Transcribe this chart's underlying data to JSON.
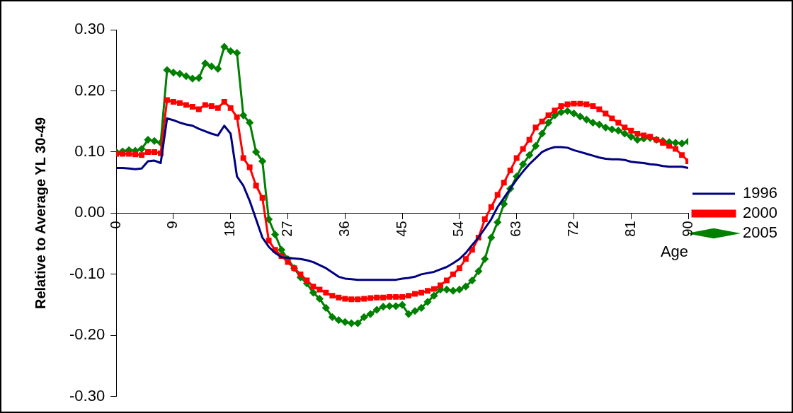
{
  "chart_data": {
    "type": "line",
    "xlabel": "Age",
    "ylabel": "Relative to Average YL 30-49",
    "x": [
      0,
      1,
      2,
      3,
      4,
      5,
      6,
      7,
      8,
      9,
      10,
      11,
      12,
      13,
      14,
      15,
      16,
      17,
      18,
      19,
      20,
      21,
      22,
      23,
      24,
      25,
      26,
      27,
      28,
      29,
      30,
      31,
      32,
      33,
      34,
      35,
      36,
      37,
      38,
      39,
      40,
      41,
      42,
      43,
      44,
      45,
      46,
      47,
      48,
      49,
      50,
      51,
      52,
      53,
      54,
      55,
      56,
      57,
      58,
      59,
      60,
      61,
      62,
      63,
      64,
      65,
      66,
      67,
      68,
      69,
      70,
      71,
      72,
      73,
      74,
      75,
      76,
      77,
      78,
      79,
      80,
      81,
      82,
      83,
      84,
      85,
      86,
      87,
      88,
      89,
      90
    ],
    "series": [
      {
        "name": "1996",
        "color": "#000080",
        "marker": "none",
        "values": [
          0.074,
          0.074,
          0.073,
          0.072,
          0.073,
          0.085,
          0.086,
          0.082,
          0.155,
          0.152,
          0.148,
          0.145,
          0.143,
          0.138,
          0.134,
          0.13,
          0.127,
          0.143,
          0.13,
          0.06,
          0.045,
          0.02,
          -0.01,
          -0.04,
          -0.055,
          -0.065,
          -0.072,
          -0.073,
          -0.074,
          -0.075,
          -0.077,
          -0.08,
          -0.085,
          -0.09,
          -0.097,
          -0.104,
          -0.107,
          -0.108,
          -0.109,
          -0.109,
          -0.109,
          -0.109,
          -0.109,
          -0.109,
          -0.109,
          -0.107,
          -0.106,
          -0.104,
          -0.1,
          -0.098,
          -0.096,
          -0.092,
          -0.088,
          -0.082,
          -0.075,
          -0.065,
          -0.052,
          -0.04,
          -0.025,
          -0.01,
          0.01,
          0.025,
          0.04,
          0.055,
          0.068,
          0.08,
          0.09,
          0.1,
          0.105,
          0.108,
          0.108,
          0.107,
          0.103,
          0.1,
          0.097,
          0.094,
          0.091,
          0.089,
          0.088,
          0.088,
          0.087,
          0.084,
          0.083,
          0.082,
          0.08,
          0.079,
          0.077,
          0.076,
          0.076,
          0.076,
          0.074
        ]
      },
      {
        "name": "2000",
        "color": "#ff0000",
        "marker": "square",
        "values": [
          0.097,
          0.097,
          0.097,
          0.096,
          0.095,
          0.1,
          0.1,
          0.098,
          0.185,
          0.182,
          0.18,
          0.177,
          0.174,
          0.17,
          0.177,
          0.175,
          0.172,
          0.182,
          0.172,
          0.157,
          0.09,
          0.075,
          0.045,
          0.025,
          -0.045,
          -0.06,
          -0.07,
          -0.08,
          -0.09,
          -0.1,
          -0.11,
          -0.12,
          -0.125,
          -0.13,
          -0.135,
          -0.138,
          -0.14,
          -0.141,
          -0.141,
          -0.14,
          -0.139,
          -0.138,
          -0.138,
          -0.137,
          -0.137,
          -0.137,
          -0.135,
          -0.132,
          -0.13,
          -0.127,
          -0.124,
          -0.118,
          -0.11,
          -0.1,
          -0.09,
          -0.075,
          -0.06,
          -0.04,
          -0.01,
          0.01,
          0.03,
          0.05,
          0.07,
          0.09,
          0.105,
          0.12,
          0.14,
          0.15,
          0.16,
          0.168,
          0.175,
          0.178,
          0.179,
          0.179,
          0.178,
          0.175,
          0.17,
          0.163,
          0.155,
          0.148,
          0.14,
          0.135,
          0.13,
          0.127,
          0.125,
          0.12,
          0.115,
          0.11,
          0.105,
          0.095,
          0.085
        ]
      },
      {
        "name": "2005",
        "color": "#008000",
        "marker": "diamond",
        "values": [
          0.1,
          0.101,
          0.103,
          0.102,
          0.105,
          0.12,
          0.118,
          0.115,
          0.234,
          0.23,
          0.228,
          0.224,
          0.22,
          0.221,
          0.245,
          0.24,
          0.236,
          0.272,
          0.265,
          0.262,
          0.16,
          0.148,
          0.1,
          0.085,
          -0.01,
          -0.035,
          -0.06,
          -0.075,
          -0.09,
          -0.105,
          -0.115,
          -0.13,
          -0.14,
          -0.155,
          -0.17,
          -0.175,
          -0.178,
          -0.18,
          -0.18,
          -0.17,
          -0.165,
          -0.158,
          -0.153,
          -0.152,
          -0.152,
          -0.15,
          -0.165,
          -0.16,
          -0.155,
          -0.145,
          -0.135,
          -0.125,
          -0.125,
          -0.127,
          -0.125,
          -0.12,
          -0.11,
          -0.095,
          -0.075,
          -0.04,
          -0.015,
          0.015,
          0.04,
          0.06,
          0.08,
          0.095,
          0.11,
          0.13,
          0.148,
          0.16,
          0.165,
          0.167,
          0.163,
          0.158,
          0.153,
          0.148,
          0.145,
          0.14,
          0.137,
          0.135,
          0.13,
          0.125,
          0.12,
          0.122,
          0.123,
          0.12,
          0.118,
          0.116,
          0.115,
          0.114,
          0.117
        ]
      }
    ],
    "xlim": [
      0,
      90
    ],
    "xticks": [
      0,
      9,
      18,
      27,
      36,
      45,
      54,
      63,
      72,
      81,
      90
    ],
    "ylim": [
      -0.3,
      0.3
    ],
    "yticks": [
      {
        "value": -0.3,
        "label": "-0.30"
      },
      {
        "value": -0.2,
        "label": "-0.20"
      },
      {
        "value": -0.1,
        "label": "-0.10"
      },
      {
        "value": 0,
        "label": "0.00"
      },
      {
        "value": 0.1,
        "label": "0.10"
      },
      {
        "value": 0.2,
        "label": "0.20"
      },
      {
        "value": 0.3,
        "label": "0.30"
      }
    ],
    "grid": false,
    "legend": "right",
    "line_style": "solid"
  }
}
